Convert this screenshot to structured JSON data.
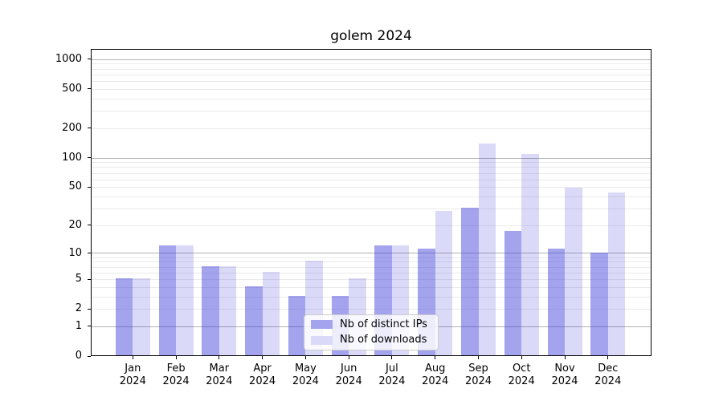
{
  "chart_data": {
    "type": "bar",
    "title": "golem 2024",
    "xlabel": "",
    "ylabel": "",
    "x_categories": [
      "Jan 2024",
      "Feb 2024",
      "Mar 2024",
      "Apr 2024",
      "May 2024",
      "Jun 2024",
      "Jul 2024",
      "Aug 2024",
      "Sep 2024",
      "Oct 2024",
      "Nov 2024",
      "Dec 2024"
    ],
    "series": [
      {
        "name": "Nb of distinct IPs",
        "color": "#a3a3ee",
        "fill": "rgba(51,51,217,0.45)",
        "values": [
          5,
          12,
          7,
          4,
          3,
          3,
          12,
          11,
          30,
          17,
          11,
          10
        ]
      },
      {
        "name": "Nb of downloads",
        "color": "#dadaf8",
        "fill": "rgba(51,51,217,0.18)",
        "values": [
          5,
          12,
          7,
          6,
          8,
          5,
          12,
          28,
          137,
          108,
          48,
          43
        ]
      }
    ],
    "y_axis": {
      "scale": "log1p",
      "tick_values": [
        0,
        1,
        2,
        5,
        10,
        20,
        50,
        100,
        200,
        500,
        1000
      ],
      "tick_labels": [
        "0",
        "1",
        "2",
        "5",
        "10",
        "20",
        "50",
        "100",
        "200",
        "500",
        "1000"
      ],
      "range": [
        0,
        1270
      ],
      "grid": true,
      "major_grid_values": [
        1,
        10,
        100,
        1000
      ],
      "major_grid_color": "#b3b3b3",
      "minor_grid_color": "#ebebeb"
    },
    "legend_position": "lower center"
  },
  "legend": {
    "items": [
      {
        "label": "Nb of distinct IPs",
        "color": "#a3a3ee"
      },
      {
        "label": "Nb of downloads",
        "color": "#dadaf8"
      }
    ]
  }
}
